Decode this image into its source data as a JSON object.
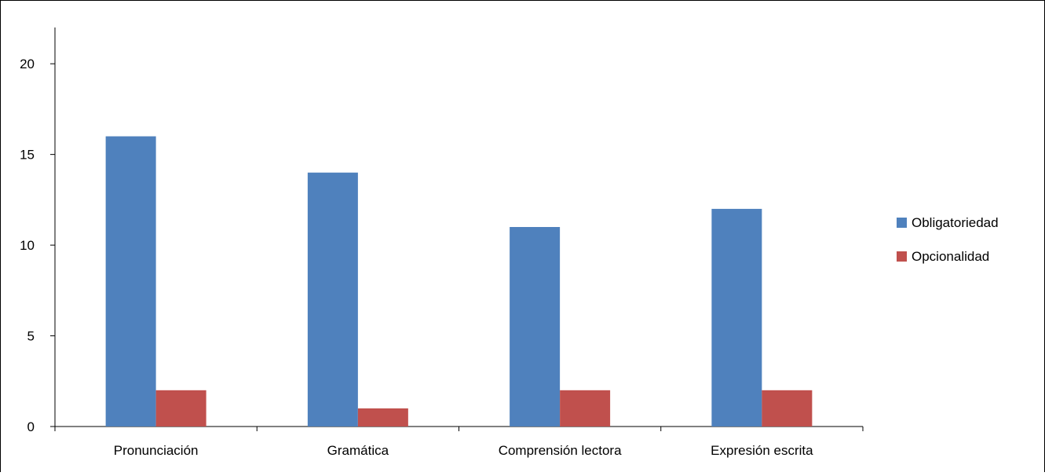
{
  "chart_data": {
    "type": "bar",
    "title": "",
    "xlabel": "",
    "ylabel": "",
    "categories": [
      "Pronunciación",
      "Gramática",
      "Comprensión lectora",
      "Expresión escrita"
    ],
    "series": [
      {
        "name": "Obligatoriedad",
        "color": "#4F81BD",
        "values": [
          16,
          14,
          11,
          12
        ]
      },
      {
        "name": "Opcionalidad",
        "color": "#C0504D",
        "values": [
          2,
          1,
          2,
          2
        ]
      }
    ],
    "ylim": [
      0,
      22
    ],
    "yticks": [
      0,
      5,
      10,
      15,
      20
    ],
    "grid": false,
    "legend_position": "right"
  }
}
